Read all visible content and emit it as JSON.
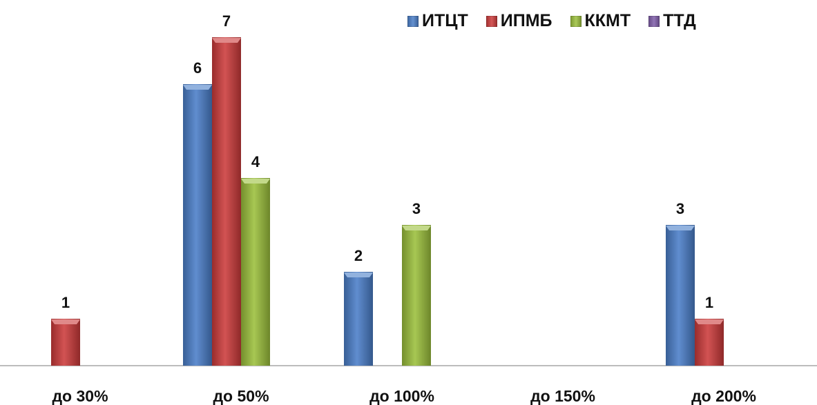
{
  "chart_data": {
    "type": "bar",
    "title": "",
    "xlabel": "",
    "ylabel": "",
    "ylim": [
      0,
      7
    ],
    "grid": false,
    "legend_position": "top-right",
    "categories": [
      "до 30%",
      "до 50%",
      "до 100%",
      "до 150%",
      "до 200%"
    ],
    "series": [
      {
        "name": "ИТЦТ",
        "color": "#4a7ec8",
        "values": [
          null,
          6,
          2,
          null,
          3
        ]
      },
      {
        "name": "ИПМБ",
        "color": "#cc3b3b",
        "values": [
          1,
          7,
          null,
          null,
          1
        ]
      },
      {
        "name": "ККМТ",
        "color": "#9bbf3c",
        "values": [
          null,
          4,
          3,
          null,
          null
        ]
      },
      {
        "name": "ТТД",
        "color": "#7e5ca8",
        "values": [
          null,
          null,
          null,
          null,
          null
        ]
      }
    ]
  }
}
